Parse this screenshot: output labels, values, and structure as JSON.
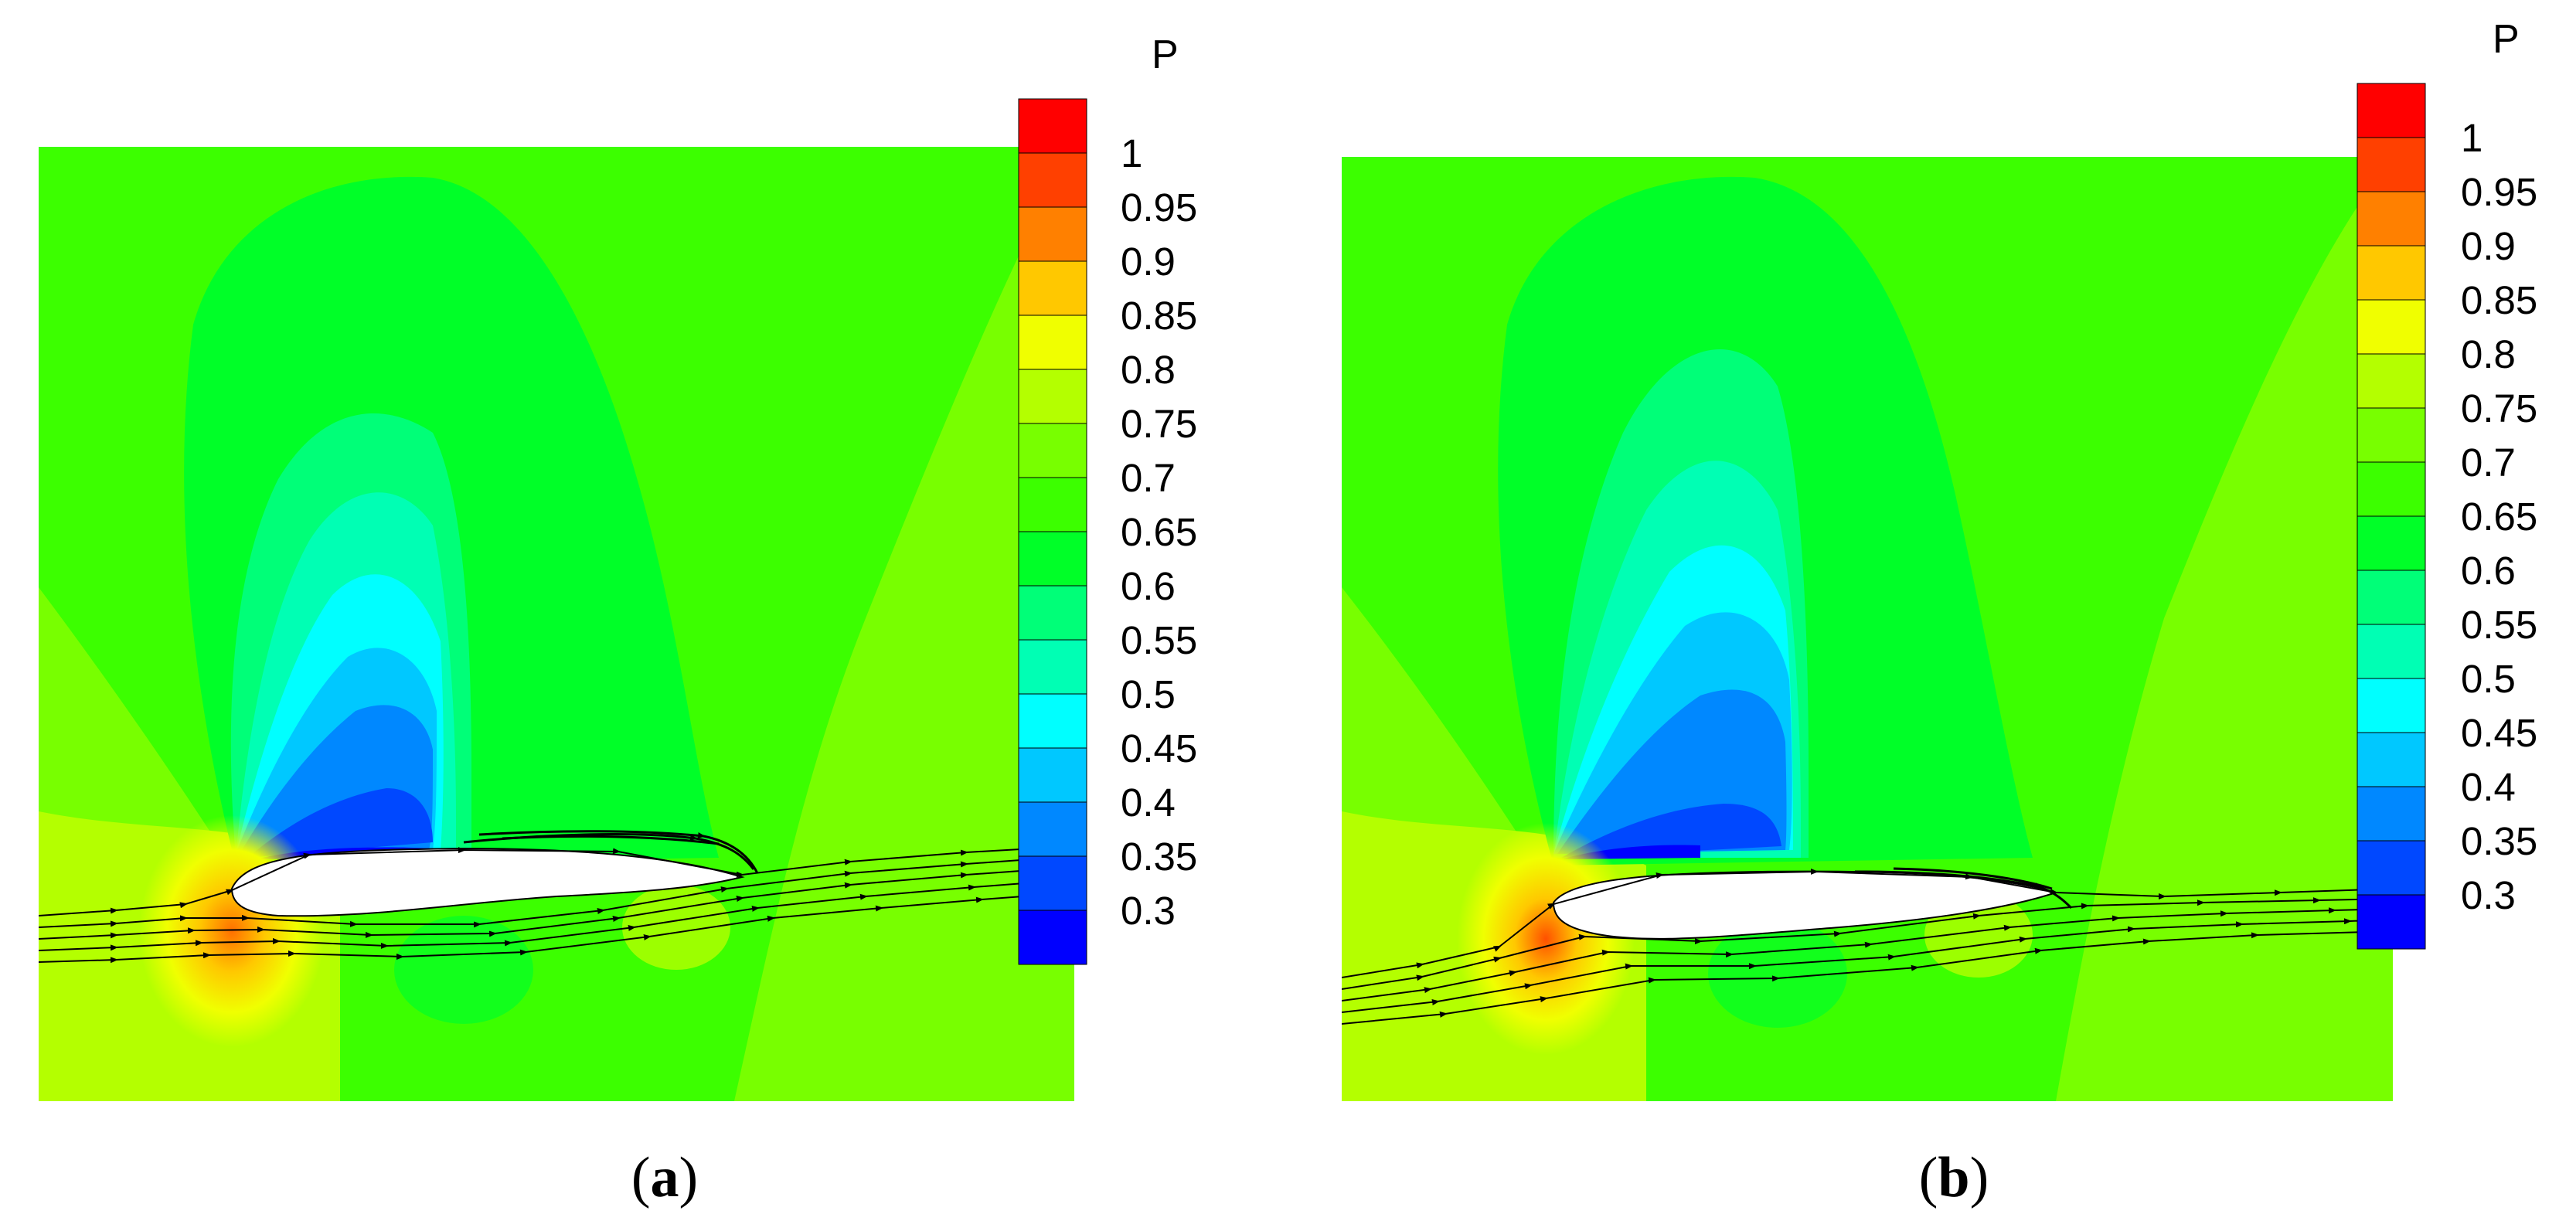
{
  "panels": [
    {
      "id": "a",
      "caption_open": "(",
      "caption_letter": "a",
      "caption_close": ")",
      "legend_title": "P",
      "legend_ticks": [
        "1",
        "0.95",
        "0.9",
        "0.85",
        "0.8",
        "0.75",
        "0.7",
        "0.65",
        "0.6",
        "0.55",
        "0.5",
        "0.45",
        "0.4",
        "0.35",
        "0.3"
      ]
    },
    {
      "id": "b",
      "caption_open": "(",
      "caption_letter": "b",
      "caption_close": ")",
      "legend_title": "P",
      "legend_ticks": [
        "1",
        "0.95",
        "0.9",
        "0.85",
        "0.8",
        "0.75",
        "0.7",
        "0.65",
        "0.6",
        "0.55",
        "0.5",
        "0.45",
        "0.4",
        "0.35",
        "0.3"
      ]
    }
  ],
  "colormap": [
    "#ff0000",
    "#ff4000",
    "#ff8000",
    "#ffc800",
    "#f0ff00",
    "#b4ff00",
    "#78ff00",
    "#3cff00",
    "#00ff28",
    "#00ff78",
    "#00ffb4",
    "#00ffff",
    "#00c8ff",
    "#0088ff",
    "#0048ff",
    "#0000ff"
  ]
}
